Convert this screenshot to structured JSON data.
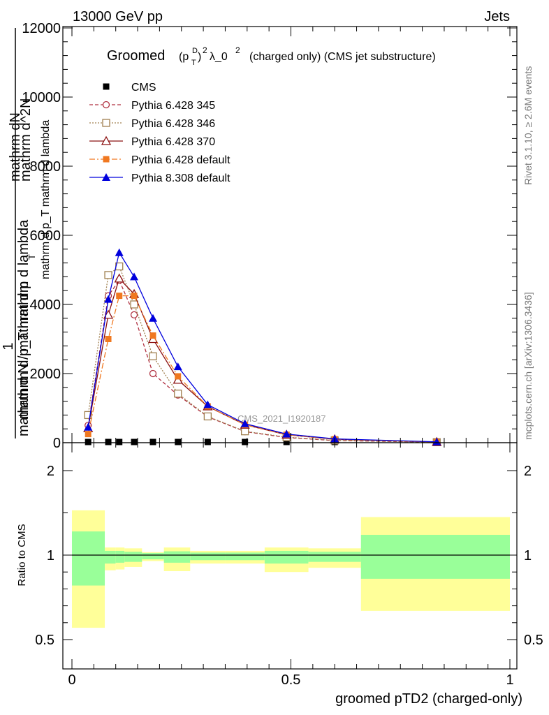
{
  "header": {
    "left": "13000 GeV pp",
    "right": "Jets"
  },
  "side_labels": {
    "rivet": "Rivet 3.1.10, ≥ 2.6M events",
    "mcplots": "mcplots.cern.ch [arXiv:1306.3436]"
  },
  "watermark": "CMS_2021_I1920187",
  "title": {
    "main": "Groomed",
    "formula": "(p",
    "sup_d": "D",
    "sub_t": "T",
    "close": ")",
    "sup_2": "2",
    "lambda": "λ_0",
    "sup_2b": "2",
    "rest": "(charged only) (CMS jet substructure)"
  },
  "ylabel_main": {
    "numerator_one": "1",
    "frac_top": "mathrm dN",
    "frac_bottom": "mathrm d p_T mathrm d lambda",
    "denom": "mathrm d N / mathrm d p",
    "denom_sub": "T",
    "left_lines": [
      "mathrm d^2N",
      "mathrm d p_T mathrm d lambda"
    ]
  },
  "ylabel_ratio": "Ratio to CMS",
  "xlabel": "groomed pTD2 (charged-only)",
  "colors": {
    "green_band": "#99ff99",
    "yellow_band": "#ffff99",
    "py345": "#b03040",
    "py346": "#a08050",
    "py370": "#8b1010",
    "py6def": "#f07820",
    "py8def": "#0000dd"
  },
  "chart_data": {
    "type": "line",
    "x_range": [
      -0.03,
      1.0
    ],
    "main_ylim": [
      0,
      12000
    ],
    "main_yticks": [
      0,
      2000,
      4000,
      6000,
      8000,
      10000,
      12000
    ],
    "main_ytick_labels": [
      "0",
      "2000",
      "4000",
      "6000",
      "8000",
      "10000",
      "12000"
    ],
    "ratio_ylim": [
      0.45,
      2.3
    ],
    "ratio_yticks": [
      0.5,
      1,
      2
    ],
    "ratio_ytick_labels": [
      "0.5",
      "1",
      "2"
    ],
    "xticks": [
      0,
      0.5,
      1
    ],
    "xtick_labels": [
      "0",
      "0.5",
      "1"
    ],
    "bins": [
      [
        0.0,
        0.075
      ],
      [
        0.075,
        0.1
      ],
      [
        0.1,
        0.12
      ],
      [
        0.12,
        0.16
      ],
      [
        0.16,
        0.21
      ],
      [
        0.21,
        0.27
      ],
      [
        0.27,
        0.35
      ],
      [
        0.35,
        0.44
      ],
      [
        0.44,
        0.54
      ],
      [
        0.54,
        0.66
      ],
      [
        0.66,
        1.0
      ]
    ],
    "x_centers": [
      0.037,
      0.083,
      0.108,
      0.142,
      0.185,
      0.242,
      0.31,
      0.395,
      0.49,
      0.6,
      0.833
    ],
    "series": [
      {
        "name": "CMS",
        "key": "cms",
        "marker": "square-filled",
        "line": "none",
        "values": [
          0,
          0,
          0,
          0,
          0,
          0,
          0,
          0,
          0,
          0,
          0
        ]
      },
      {
        "name": "Pythia 6.428 345",
        "key": "py345",
        "marker": "circle-open",
        "line": "dashed",
        "values": [
          500,
          4250,
          4700,
          3700,
          2000,
          1380,
          750,
          320,
          150,
          60,
          15
        ]
      },
      {
        "name": "Pythia 6.428 346",
        "key": "py346",
        "marker": "square-open",
        "line": "dotted",
        "values": [
          800,
          4850,
          5100,
          4000,
          2500,
          1420,
          760,
          330,
          160,
          65,
          15
        ]
      },
      {
        "name": "Pythia 6.428 370",
        "key": "py370",
        "marker": "triangle-open",
        "line": "solid",
        "values": [
          420,
          3700,
          4750,
          4300,
          3000,
          1820,
          1050,
          520,
          230,
          100,
          20
        ]
      },
      {
        "name": "Pythia 6.428 default",
        "key": "py6def",
        "marker": "square-filled",
        "line": "dashdot",
        "values": [
          250,
          3000,
          4250,
          4250,
          3100,
          1920,
          1050,
          520,
          230,
          100,
          20
        ]
      },
      {
        "name": "Pythia 8.308 default",
        "key": "py8def",
        "marker": "triangle-filled",
        "line": "solid",
        "values": [
          450,
          4150,
          5500,
          4800,
          3600,
          2200,
          1100,
          550,
          250,
          110,
          25
        ]
      }
    ],
    "ratio_bands": {
      "green_low": [
        0.82,
        0.95,
        0.955,
        0.96,
        0.975,
        0.955,
        0.97,
        0.97,
        0.95,
        0.96,
        0.86
      ],
      "green_high": [
        1.28,
        1.05,
        1.05,
        1.04,
        1.025,
        1.045,
        1.03,
        1.03,
        1.05,
        1.04,
        1.24
      ],
      "yellow_low": [
        0.57,
        0.91,
        0.915,
        0.93,
        0.965,
        0.905,
        0.95,
        0.95,
        0.9,
        0.925,
        0.67
      ],
      "yellow_high": [
        1.53,
        1.09,
        1.09,
        1.08,
        1.035,
        1.09,
        1.05,
        1.05,
        1.09,
        1.08,
        1.45
      ]
    }
  }
}
